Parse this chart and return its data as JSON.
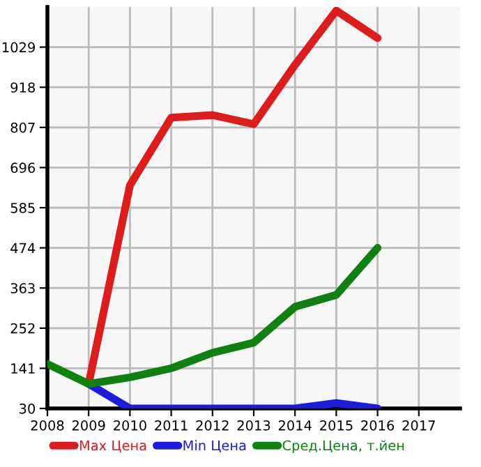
{
  "chart_data": {
    "type": "line",
    "x": [
      2008,
      2009,
      2010,
      2011,
      2012,
      2013,
      2014,
      2015,
      2016
    ],
    "series": [
      {
        "name": "Max Цена",
        "color": "#dd1c1c",
        "values": [
          null,
          98,
          647,
          834,
          841,
          816,
          980,
          1130,
          1054
        ]
      },
      {
        "name": "Min Цена",
        "color": "#1c1cdd",
        "values": [
          null,
          98,
          30,
          30,
          30,
          30,
          30,
          45,
          30
        ]
      },
      {
        "name": "Сред.Цена, т.йен",
        "color": "#108010",
        "values": [
          153,
          98,
          116,
          141,
          184,
          212,
          311,
          344,
          474
        ]
      }
    ],
    "xlim": [
      2008,
      2018
    ],
    "xticks": [
      2008,
      2009,
      2010,
      2011,
      2012,
      2013,
      2014,
      2015,
      2016,
      2017
    ],
    "ylim": [
      30,
      1140
    ],
    "yticks": [
      30,
      141,
      252,
      363,
      474,
      585,
      696,
      807,
      918,
      1029
    ],
    "grid": true,
    "legend": "bottom",
    "marker": "none",
    "line_style": "solid"
  }
}
